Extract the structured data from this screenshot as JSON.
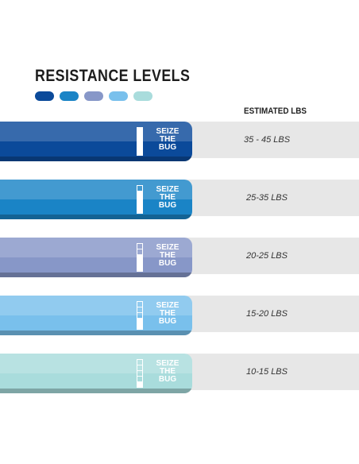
{
  "title": "RESISTANCE LEVELS",
  "column_header": "ESTIMATED LBS",
  "swatches": [
    {
      "color": "#0b4a9a"
    },
    {
      "color": "#1a84c6"
    },
    {
      "color": "#8797c8"
    },
    {
      "color": "#79c0ec"
    },
    {
      "color": "#a9dcdc"
    }
  ],
  "bands": [
    {
      "brand_line1": "SEIZE",
      "brand_line2": "THE",
      "brand_line3": "BUG",
      "estimated_lbs": "35 - 45 LBS",
      "color": "#0b4a9a",
      "level_filled": 5,
      "level_total": 5
    },
    {
      "brand_line1": "SEIZE",
      "brand_line2": "THE",
      "brand_line3": "BUG",
      "estimated_lbs": "25-35 LBS",
      "color": "#1a84c6",
      "level_filled": 4,
      "level_total": 5
    },
    {
      "brand_line1": "SEIZE",
      "brand_line2": "THE",
      "brand_line3": "BUG",
      "estimated_lbs": "20-25 LBS",
      "color": "#8797c8",
      "level_filled": 3,
      "level_total": 5
    },
    {
      "brand_line1": "SEIZE",
      "brand_line2": "THE",
      "brand_line3": "BUG",
      "estimated_lbs": "15-20 LBS",
      "color": "#79c0ec",
      "level_filled": 2,
      "level_total": 5
    },
    {
      "brand_line1": "SEIZE",
      "brand_line2": "THE",
      "brand_line3": "BUG",
      "estimated_lbs": "10-15 LBS",
      "color": "#a9dcdc",
      "level_filled": 1,
      "level_total": 5
    }
  ]
}
